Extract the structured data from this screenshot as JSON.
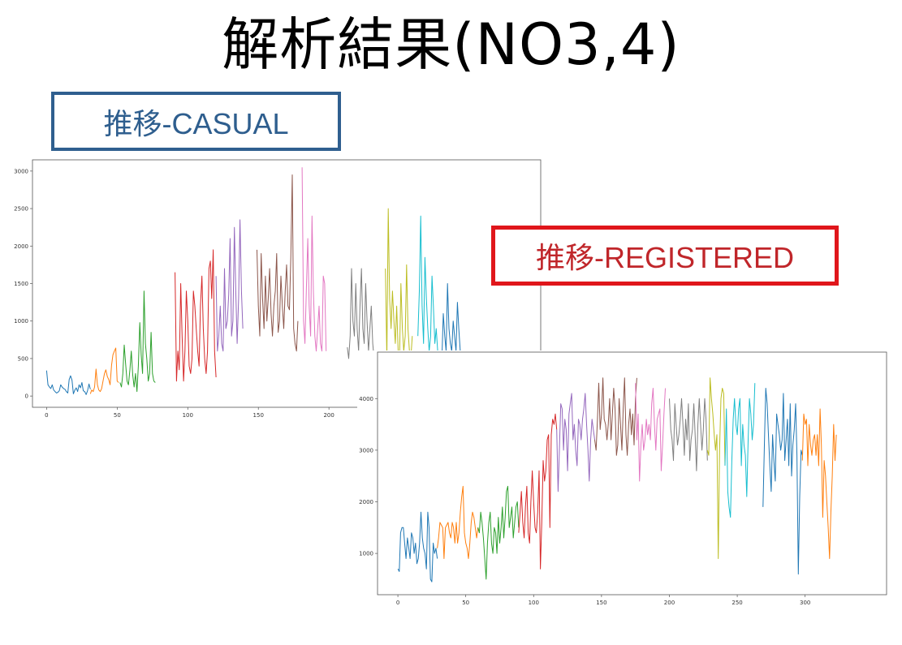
{
  "slide": {
    "title": "解析結果(NO3,4)"
  },
  "labels": {
    "casual": "推移-CASUAL",
    "registered": "推移-REGISTERED"
  },
  "colors": {
    "casual_box": "#2f5f8f",
    "registered_box": "#e0161b",
    "series_palette": [
      "#1f77b4",
      "#ff7f0e",
      "#2ca02c",
      "#d62728",
      "#9467bd",
      "#8c564b",
      "#e377c2",
      "#7f7f7f",
      "#bcbd22",
      "#17becf"
    ]
  },
  "chart_data": [
    {
      "type": "line",
      "xlim": [
        -10,
        350
      ],
      "ylim": [
        -150,
        3150
      ],
      "xticks": [
        0,
        50,
        100,
        150,
        200
      ],
      "yticks": [
        0,
        500,
        1000,
        1500,
        2000,
        2500,
        3000
      ],
      "grid": false,
      "series": [
        {
          "x_start": 0,
          "values": [
            340,
            150,
            120,
            100,
            150,
            80,
            60,
            40,
            50,
            70,
            150,
            120,
            100,
            90,
            60,
            40,
            220,
            270,
            210,
            30,
            80,
            110,
            60,
            150,
            110,
            180,
            70,
            60,
            20,
            70,
            160,
            90
          ]
        },
        {
          "x_start": 31,
          "values": [
            30,
            80,
            60,
            120,
            360,
            150,
            80,
            60,
            100,
            200,
            300,
            350,
            260,
            220,
            150,
            410,
            550,
            600,
            640,
            200,
            180
          ]
        },
        {
          "x_start": 52,
          "values": [
            180,
            120,
            300,
            680,
            420,
            200,
            150,
            350,
            600,
            280,
            120,
            300,
            60,
            400,
            980,
            550,
            300,
            1400,
            700,
            500,
            200,
            300,
            850,
            300,
            200,
            180
          ]
        },
        {
          "x_start": 91,
          "values": [
            1650,
            200,
            600,
            350,
            1500,
            800,
            200,
            600,
            1400,
            1000,
            400,
            300,
            500,
            1400,
            1200,
            900,
            600,
            400,
            1200,
            1600,
            900,
            500,
            300,
            600,
            1700,
            1800,
            1300,
            1950,
            600,
            250
          ]
        },
        {
          "x_start": 120,
          "values": [
            1600,
            600,
            800,
            1200,
            700,
            600,
            1700,
            900,
            1000,
            1350,
            2100,
            800,
            1000,
            2250,
            1400,
            700,
            1300,
            2350,
            1400,
            900
          ]
        },
        {
          "x_start": 149,
          "values": [
            1950,
            1200,
            800,
            1900,
            1300,
            900,
            1600,
            1000,
            1300,
            1700,
            1100,
            800,
            1200,
            1400,
            1900,
            850,
            1000,
            1600,
            1200,
            900,
            1400,
            1750,
            1200,
            1150,
            1850,
            2950,
            900,
            700,
            600,
            1000
          ]
        },
        {
          "x_start": 181,
          "values": [
            3050,
            1000,
            700,
            1400,
            2100,
            1200,
            800,
            2400,
            1400,
            800,
            600,
            900,
            1200,
            700,
            600,
            1600,
            1500,
            600
          ]
        },
        {
          "x_start": 213,
          "values": [
            650,
            500,
            800,
            1700,
            1000,
            800,
            1500,
            900,
            600,
            1200,
            1700,
            900,
            700,
            1500,
            1000,
            600,
            900,
            1200,
            700,
            500
          ]
        },
        {
          "x_start": 240,
          "values": [
            1700,
            500,
            2500,
            1300,
            900,
            1400,
            1000,
            700,
            1200,
            600,
            500,
            1500,
            900,
            600,
            800,
            1750,
            900,
            600,
            500,
            800
          ]
        },
        {
          "x_start": 263,
          "values": [
            800,
            1400,
            2400,
            1200,
            700,
            1850,
            1300,
            900,
            600,
            800,
            1600,
            1200,
            700,
            900,
            600,
            500
          ]
        },
        {
          "x_start": 279,
          "values": [
            600,
            500,
            1100,
            800,
            600,
            1500,
            900,
            700,
            600,
            1000,
            800,
            600,
            1250,
            900,
            600
          ]
        }
      ]
    },
    {
      "type": "line",
      "xlim": [
        -15,
        360
      ],
      "ylim": [
        200,
        4900
      ],
      "xticks": [
        0,
        50,
        100,
        150,
        200,
        250,
        300
      ],
      "yticks": [
        1000,
        2000,
        3000,
        4000
      ],
      "grid": false,
      "series": [
        {
          "x_start": 0,
          "values": [
            700,
            650,
            1400,
            1500,
            1500,
            1200,
            900,
            1300,
            1100,
            900,
            1400,
            1300,
            1000,
            1200,
            800,
            900,
            1200,
            1800,
            1300,
            1100,
            1000,
            700,
            1800,
            1500,
            500,
            450,
            1200,
            1000,
            1100,
            900
          ]
        },
        {
          "x_start": 29,
          "values": [
            1100,
            1300,
            1600,
            1550,
            1500,
            900,
            1500,
            1550,
            1600,
            1400,
            1300,
            1600,
            1500,
            1200,
            1600,
            1200,
            1400,
            1800,
            2100,
            2300,
            1400,
            1200,
            1100,
            900,
            1200,
            1600,
            1800,
            1700,
            1500,
            1300,
            1500
          ]
        },
        {
          "x_start": 59,
          "values": [
            1500,
            1400,
            1800,
            1600,
            1300,
            900,
            500,
            1200,
            1600,
            1800,
            1200,
            1000,
            1500,
            1400,
            1000,
            1700,
            1200,
            1500,
            1900,
            1300,
            1700,
            2200,
            2300,
            1500,
            1700,
            1900,
            1300,
            1600,
            1900,
            2000,
            1500
          ]
        },
        {
          "x_start": 89,
          "values": [
            1400,
            1800,
            2200,
            1600,
            1300,
            1900,
            2300,
            1400,
            1200,
            2000,
            2600,
            2000,
            1500,
            1400,
            1800,
            2600,
            700,
            1600,
            2800,
            2400,
            2600,
            3200,
            3300,
            1500,
            3300,
            3600,
            3500,
            3700,
            3400
          ]
        },
        {
          "x_start": 117,
          "values": [
            3400,
            2200,
            3000,
            3900,
            3800,
            3000,
            3600,
            3400,
            2600,
            3700,
            3900,
            4100,
            3200,
            3500,
            3000,
            2700,
            3600,
            3500,
            3200,
            3600,
            3800,
            4100,
            3500,
            3000,
            2400,
            3200,
            3600,
            3400,
            3200
          ]
        },
        {
          "x_start": 145,
          "values": [
            3200,
            3000,
            3600,
            4300,
            3400,
            3700,
            4400,
            3600,
            3500,
            3200,
            3500,
            4000,
            3200,
            3700,
            4200,
            3800,
            2900,
            3100,
            4000,
            3500,
            3000,
            3800,
            4400,
            3300,
            2900,
            3500,
            3800,
            3300,
            3700,
            3100,
            4000,
            4400
          ]
        },
        {
          "x_start": 175,
          "values": [
            4300,
            3200,
            3700,
            2400,
            3100,
            3500,
            3000,
            3200,
            3600,
            3300,
            3500,
            3200,
            3900,
            4200,
            3500,
            3000,
            3600,
            3700,
            3800,
            2600,
            3100,
            3700,
            4200
          ]
        },
        {
          "x_start": 200,
          "values": [
            4000,
            3400,
            3200,
            2800,
            3900,
            3500,
            3100,
            3300,
            3600,
            4000,
            3500,
            2900,
            3600,
            3200,
            3900,
            2800,
            3200,
            3400,
            3900,
            3300,
            2600,
            3500,
            4000,
            3500,
            3000,
            3400,
            4000,
            3600,
            2800
          ]
        },
        {
          "x_start": 228,
          "values": [
            3000,
            2900,
            4400,
            4000,
            3700,
            3300,
            3000,
            3300,
            900,
            3000,
            4000,
            4200,
            4100,
            2700
          ]
        },
        {
          "x_start": 241,
          "values": [
            2700,
            3800,
            2200,
            1900,
            1700,
            2800,
            3600,
            4000,
            3500,
            3300,
            3800,
            4000,
            2700,
            3500,
            3100,
            2900,
            2100,
            3200,
            4000,
            3700,
            3200,
            3500,
            4300
          ]
        },
        {
          "x_start": 269,
          "values": [
            1900,
            3100,
            4200,
            3900,
            3300,
            2700,
            2200,
            3300,
            2800,
            2400,
            3700,
            3500,
            3300,
            3000,
            3200,
            4100,
            2800,
            3200,
            3600,
            2700,
            3900,
            2500,
            3100,
            3400,
            3900,
            2900,
            600,
            2100,
            3000,
            2900
          ]
        },
        {
          "x_start": 298,
          "values": [
            2800,
            3700,
            3500,
            3600,
            2700,
            3500,
            3100,
            2900,
            3200,
            3300,
            2900,
            3300,
            2700,
            3800,
            3100,
            1700,
            2800,
            2500,
            2000,
            1500,
            900,
            1800,
            2500,
            3500,
            2800,
            3300
          ]
        }
      ]
    }
  ]
}
